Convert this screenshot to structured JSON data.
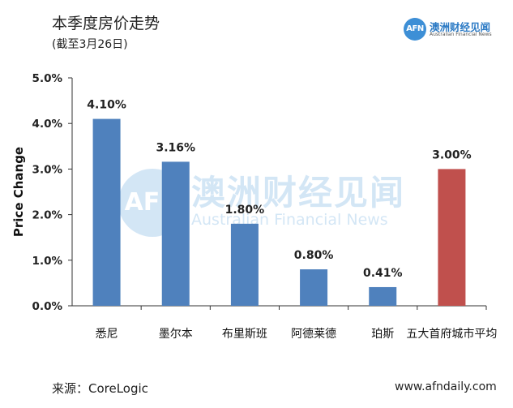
{
  "header": {
    "title": "本季度房价走势",
    "subtitle": "(截至3月26日)"
  },
  "logo": {
    "mark": "AFN",
    "name": "澳洲财经见闻",
    "sub": "Australian Financial News"
  },
  "watermark": {
    "mark": "AFN",
    "name": "澳洲财经见闻",
    "sub": "Australian Financial News"
  },
  "footer": {
    "source": "来源：CoreLogic",
    "site": "www.afndaily.com"
  },
  "colors": {
    "bar": "#4f81bd",
    "highlight": "#c0504d",
    "axis": "#333333",
    "brand": "#3d8fd6"
  },
  "chart_data": {
    "type": "bar",
    "ylabel": "Price Change",
    "ylim": [
      0,
      5
    ],
    "yticks": [
      "0.0%",
      "1.0%",
      "2.0%",
      "3.0%",
      "4.0%",
      "5.0%"
    ],
    "categories": [
      "悉尼",
      "墨尔本",
      "布里斯班",
      "阿德莱德",
      "珀斯",
      "五大首府城市平均"
    ],
    "values": [
      4.1,
      3.16,
      1.8,
      0.8,
      0.41,
      3.0
    ],
    "data_labels": [
      "4.10%",
      "3.16%",
      "1.80%",
      "0.80%",
      "0.41%",
      "3.00%"
    ],
    "highlight_index": 5,
    "grid": false,
    "legend": "none"
  }
}
